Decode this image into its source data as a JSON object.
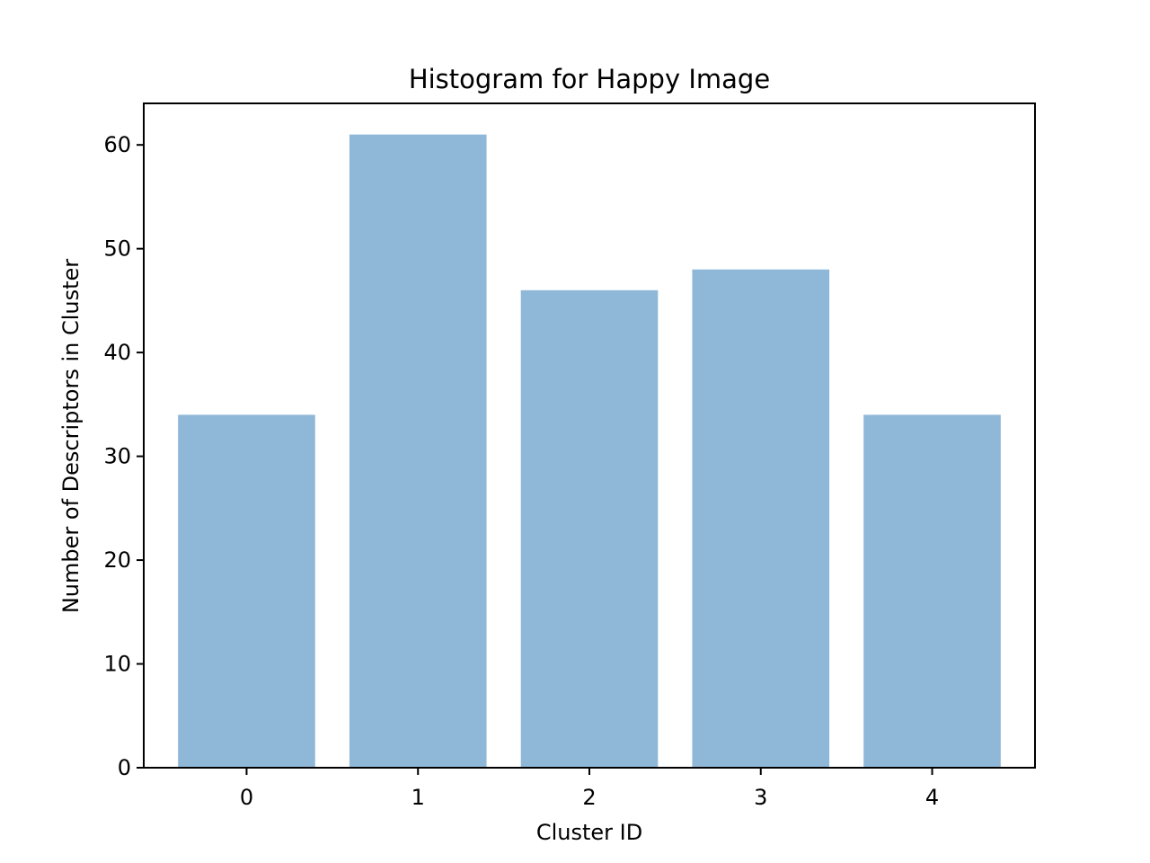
{
  "chart_data": {
    "type": "bar",
    "title": "Histogram for Happy Image",
    "xlabel": "Cluster ID",
    "ylabel": "Number of Descriptors in Cluster",
    "categories": [
      "0",
      "1",
      "2",
      "3",
      "4"
    ],
    "values": [
      34,
      61,
      46,
      48,
      34
    ],
    "ylim": [
      0,
      64
    ],
    "yticks": [
      0,
      10,
      20,
      30,
      40,
      50,
      60
    ],
    "grid": false,
    "bar_color": "#8fb8d8"
  }
}
